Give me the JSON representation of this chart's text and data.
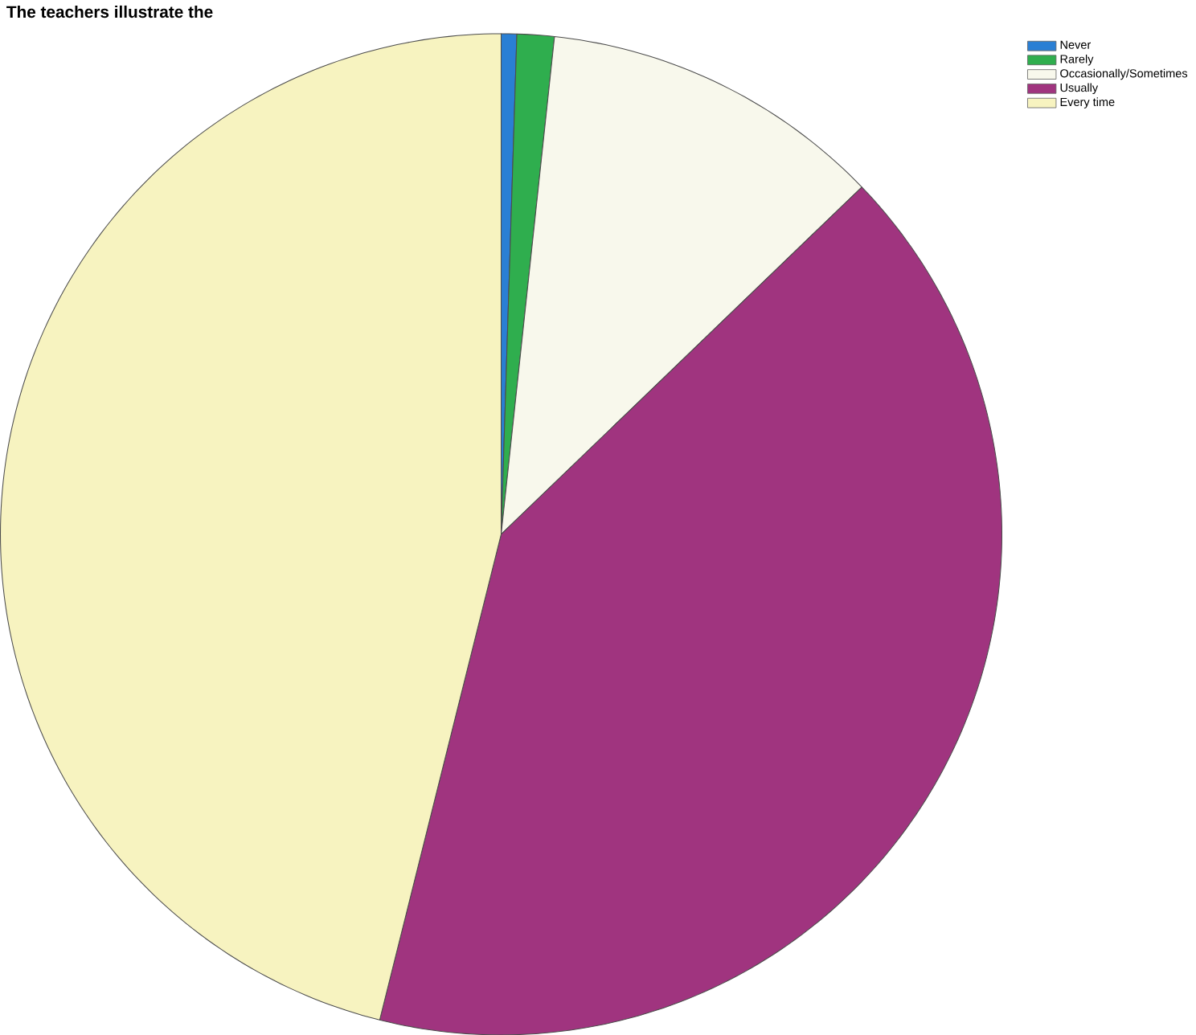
{
  "chart_data": {
    "type": "pie",
    "title": "The teachers illustrate the",
    "categories": [
      "Never",
      "Rarely",
      "Occasionally/Sometimes",
      "Usually",
      "Every time"
    ],
    "values": [
      0.5,
      1.2,
      11.1,
      41.1,
      46.1
    ],
    "colors": [
      "#2a7fd4",
      "#2fae4e",
      "#f8f8ec",
      "#a0347f",
      "#f7f3c0"
    ],
    "legend": "top right"
  }
}
